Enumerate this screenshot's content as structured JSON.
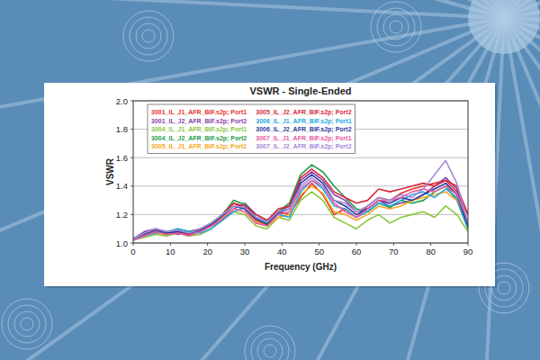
{
  "chart_data": {
    "type": "line",
    "title": "VSWR - Single-Ended",
    "x_label": "Frequency (GHz)",
    "y_label": "VSWR",
    "x": [
      0,
      3,
      6,
      9,
      12,
      15,
      18,
      21,
      24,
      27,
      30,
      33,
      36,
      39,
      42,
      45,
      48,
      51,
      54,
      57,
      60,
      63,
      66,
      69,
      72,
      75,
      78,
      81,
      84,
      87,
      90
    ],
    "xlim": [
      0,
      90
    ],
    "xticks": [
      0,
      10,
      20,
      30,
      40,
      50,
      60,
      70,
      80,
      90
    ],
    "ylim": [
      1,
      2
    ],
    "yticks": [
      {
        "value": 1,
        "label": "1.0"
      },
      1.2,
      1.4,
      1.6,
      1.8,
      {
        "value": 2,
        "label": "2.0"
      }
    ],
    "grid": true,
    "legend": "upper left",
    "series": [
      {
        "name": "3001_IL_J1_AFR_BIF.s2p; Port1",
        "color": "#e8302a",
        "values": [
          1.02,
          1.05,
          1.08,
          1.06,
          1.09,
          1.07,
          1.1,
          1.14,
          1.2,
          1.28,
          1.24,
          1.16,
          1.12,
          1.22,
          1.2,
          1.32,
          1.42,
          1.34,
          1.2,
          1.24,
          1.18,
          1.26,
          1.32,
          1.3,
          1.35,
          1.38,
          1.4,
          1.42,
          1.44,
          1.36,
          1.2
        ]
      },
      {
        "name": "3001_IL_J2_AFR_BIF.s2p; Port2",
        "color": "#8a3fa8",
        "values": [
          1.03,
          1.08,
          1.1,
          1.08,
          1.06,
          1.08,
          1.1,
          1.12,
          1.16,
          1.24,
          1.28,
          1.2,
          1.16,
          1.22,
          1.26,
          1.44,
          1.5,
          1.44,
          1.34,
          1.3,
          1.22,
          1.24,
          1.3,
          1.26,
          1.28,
          1.3,
          1.34,
          1.4,
          1.46,
          1.38,
          1.12
        ]
      },
      {
        "name": "3004_IL_J1_AFR_BIF.s2p; Port1",
        "color": "#8cc63f",
        "values": [
          1.02,
          1.04,
          1.06,
          1.05,
          1.07,
          1.05,
          1.06,
          1.1,
          1.16,
          1.22,
          1.2,
          1.12,
          1.1,
          1.18,
          1.16,
          1.3,
          1.36,
          1.3,
          1.18,
          1.14,
          1.1,
          1.16,
          1.2,
          1.14,
          1.18,
          1.2,
          1.22,
          1.18,
          1.26,
          1.2,
          1.08
        ]
      },
      {
        "name": "3004_IL_J2_AFR_BIF.s2p; Port2",
        "color": "#1e9e4a",
        "values": [
          1.03,
          1.07,
          1.09,
          1.07,
          1.1,
          1.08,
          1.09,
          1.14,
          1.2,
          1.3,
          1.27,
          1.18,
          1.14,
          1.22,
          1.28,
          1.48,
          1.55,
          1.5,
          1.4,
          1.32,
          1.24,
          1.22,
          1.28,
          1.25,
          1.3,
          1.28,
          1.3,
          1.36,
          1.4,
          1.3,
          1.1
        ]
      },
      {
        "name": "3005_IL_J1_AFR_BIF.s2p; Port1",
        "color": "#f5a623",
        "values": [
          1.02,
          1.05,
          1.07,
          1.06,
          1.08,
          1.06,
          1.08,
          1.12,
          1.18,
          1.24,
          1.22,
          1.15,
          1.12,
          1.18,
          1.2,
          1.34,
          1.4,
          1.35,
          1.22,
          1.2,
          1.16,
          1.2,
          1.26,
          1.24,
          1.26,
          1.3,
          1.32,
          1.34,
          1.36,
          1.3,
          1.14
        ]
      },
      {
        "name": "3005_IL_J2_AFR_BIF.s2p; Port2",
        "color": "#d8283c",
        "values": [
          1.02,
          1.06,
          1.08,
          1.07,
          1.08,
          1.06,
          1.08,
          1.12,
          1.2,
          1.28,
          1.26,
          1.2,
          1.16,
          1.24,
          1.26,
          1.46,
          1.52,
          1.46,
          1.36,
          1.32,
          1.28,
          1.3,
          1.38,
          1.36,
          1.38,
          1.4,
          1.42,
          1.4,
          1.44,
          1.4,
          1.2
        ]
      },
      {
        "name": "3006_IL_J1_AFR_BIF.s2p; Port1",
        "color": "#27a9e1",
        "values": [
          1.02,
          1.05,
          1.07,
          1.08,
          1.1,
          1.08,
          1.07,
          1.1,
          1.16,
          1.22,
          1.25,
          1.18,
          1.15,
          1.2,
          1.18,
          1.36,
          1.44,
          1.38,
          1.26,
          1.24,
          1.18,
          1.22,
          1.28,
          1.26,
          1.3,
          1.34,
          1.36,
          1.32,
          1.38,
          1.32,
          1.1
        ]
      },
      {
        "name": "3006_IL_J2_AFR_BIF.s2p; Port2",
        "color": "#2b3a9a",
        "values": [
          1.03,
          1.06,
          1.09,
          1.07,
          1.08,
          1.07,
          1.09,
          1.13,
          1.19,
          1.26,
          1.24,
          1.17,
          1.13,
          1.21,
          1.24,
          1.42,
          1.48,
          1.42,
          1.3,
          1.26,
          1.2,
          1.24,
          1.3,
          1.28,
          1.32,
          1.3,
          1.34,
          1.38,
          1.42,
          1.34,
          1.12
        ]
      },
      {
        "name": "3007_IL_J1_AFR_BIF.s2p; Port1",
        "color": "#e85ca0",
        "values": [
          1.02,
          1.05,
          1.08,
          1.06,
          1.07,
          1.05,
          1.08,
          1.12,
          1.17,
          1.24,
          1.22,
          1.14,
          1.12,
          1.2,
          1.22,
          1.38,
          1.44,
          1.4,
          1.28,
          1.22,
          1.18,
          1.24,
          1.3,
          1.3,
          1.32,
          1.36,
          1.38,
          1.36,
          1.4,
          1.34,
          1.16
        ]
      },
      {
        "name": "3007_IL_J2_AFR_BIF.s2p; Port2",
        "color": "#a58ad8",
        "values": [
          1.03,
          1.07,
          1.1,
          1.08,
          1.09,
          1.07,
          1.1,
          1.14,
          1.2,
          1.26,
          1.25,
          1.18,
          1.15,
          1.22,
          1.24,
          1.4,
          1.46,
          1.4,
          1.3,
          1.28,
          1.22,
          1.26,
          1.32,
          1.3,
          1.34,
          1.32,
          1.38,
          1.48,
          1.58,
          1.42,
          1.14
        ]
      }
    ]
  }
}
